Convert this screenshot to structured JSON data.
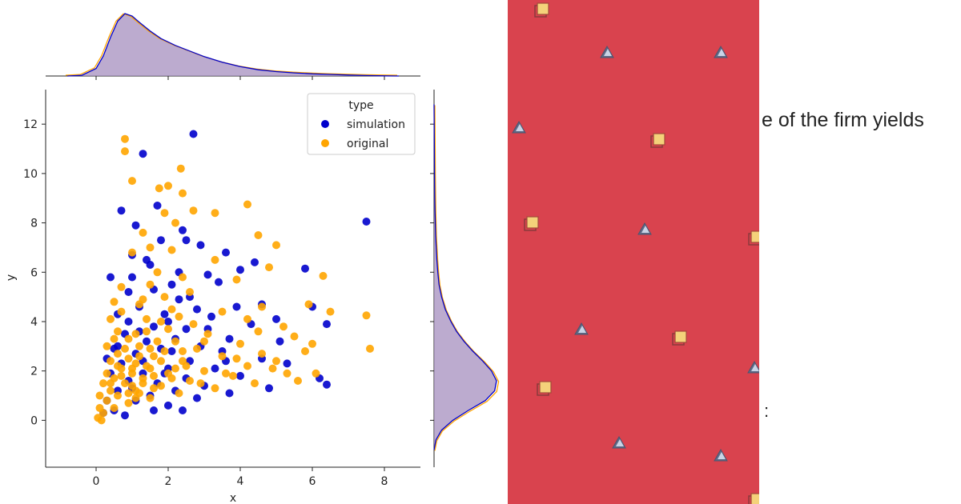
{
  "chart_data": {
    "type": "scatter",
    "title": "",
    "xlabel": "x",
    "ylabel": "y",
    "xlim": [
      -1.4,
      9.0
    ],
    "ylim": [
      -1.9,
      13.4
    ],
    "xticks": [
      0,
      2,
      4,
      6,
      8
    ],
    "yticks": [
      0,
      2,
      4,
      6,
      8,
      10,
      12
    ],
    "grid": false,
    "legend": {
      "title": "type",
      "placement": "top-right",
      "entries": [
        {
          "label": "simulation",
          "color": "#0000cc"
        },
        {
          "label": "original",
          "color": "#ffa500"
        }
      ]
    },
    "series": [
      {
        "name": "simulation",
        "color": "#0000cc",
        "points": [
          [
            2.7,
            11.6
          ],
          [
            1.3,
            10.8
          ],
          [
            7.5,
            8.05
          ],
          [
            0.7,
            8.5
          ],
          [
            1.7,
            8.7
          ],
          [
            1.1,
            7.9
          ],
          [
            2.4,
            7.7
          ],
          [
            2.5,
            7.3
          ],
          [
            2.9,
            7.1
          ],
          [
            1.8,
            7.3
          ],
          [
            1.0,
            6.7
          ],
          [
            3.6,
            6.8
          ],
          [
            4.0,
            6.1
          ],
          [
            5.8,
            6.15
          ],
          [
            3.1,
            5.9
          ],
          [
            1.5,
            6.3
          ],
          [
            0.4,
            5.8
          ],
          [
            0.9,
            5.2
          ],
          [
            2.1,
            5.5
          ],
          [
            3.4,
            5.6
          ],
          [
            2.3,
            4.9
          ],
          [
            4.6,
            4.7
          ],
          [
            6.0,
            4.6
          ],
          [
            1.2,
            4.6
          ],
          [
            2.8,
            4.5
          ],
          [
            1.9,
            4.3
          ],
          [
            3.2,
            4.2
          ],
          [
            0.6,
            4.3
          ],
          [
            4.3,
            3.9
          ],
          [
            2.5,
            3.7
          ],
          [
            1.6,
            3.8
          ],
          [
            3.7,
            3.3
          ],
          [
            0.8,
            3.5
          ],
          [
            2.2,
            3.3
          ],
          [
            5.1,
            3.2
          ],
          [
            1.4,
            3.2
          ],
          [
            2.9,
            3.0
          ],
          [
            6.4,
            3.9
          ],
          [
            0.5,
            2.9
          ],
          [
            3.5,
            2.8
          ],
          [
            1.8,
            2.9
          ],
          [
            4.6,
            2.5
          ],
          [
            1.1,
            2.7
          ],
          [
            2.6,
            2.4
          ],
          [
            5.3,
            2.3
          ],
          [
            0.7,
            2.3
          ],
          [
            2.0,
            2.1
          ],
          [
            3.3,
            2.1
          ],
          [
            6.2,
            1.7
          ],
          [
            1.3,
            1.9
          ],
          [
            4.0,
            1.8
          ],
          [
            2.5,
            1.7
          ],
          [
            0.9,
            1.6
          ],
          [
            1.7,
            1.5
          ],
          [
            3.0,
            1.4
          ],
          [
            6.4,
            1.45
          ],
          [
            4.8,
            1.3
          ],
          [
            2.2,
            1.2
          ],
          [
            0.6,
            1.2
          ],
          [
            1.5,
            1.0
          ],
          [
            3.7,
            1.1
          ],
          [
            2.8,
            0.9
          ],
          [
            1.1,
            0.8
          ],
          [
            0.3,
            0.8
          ],
          [
            2.0,
            0.6
          ],
          [
            1.6,
            0.4
          ],
          [
            0.5,
            0.4
          ],
          [
            2.4,
            0.4
          ],
          [
            0.8,
            0.2
          ],
          [
            0.2,
            0.3
          ],
          [
            1.0,
            1.3
          ],
          [
            1.3,
            2.4
          ],
          [
            0.4,
            1.9
          ],
          [
            2.1,
            2.8
          ],
          [
            1.9,
            1.9
          ],
          [
            3.1,
            3.7
          ],
          [
            2.6,
            5.0
          ],
          [
            1.6,
            5.3
          ],
          [
            4.4,
            6.4
          ],
          [
            5.0,
            4.1
          ],
          [
            3.9,
            4.6
          ],
          [
            1.2,
            3.6
          ],
          [
            0.9,
            4.0
          ],
          [
            0.3,
            2.5
          ],
          [
            2.3,
            6.0
          ],
          [
            2.0,
            4.0
          ],
          [
            1.0,
            5.8
          ],
          [
            0.6,
            3.0
          ],
          [
            1.4,
            6.5
          ],
          [
            3.6,
            2.4
          ]
        ]
      },
      {
        "name": "original",
        "color": "#ffa500",
        "points": [
          [
            0.8,
            11.4
          ],
          [
            0.8,
            10.9
          ],
          [
            2.35,
            10.2
          ],
          [
            1.0,
            9.7
          ],
          [
            1.75,
            9.4
          ],
          [
            2.0,
            9.5
          ],
          [
            2.4,
            9.2
          ],
          [
            4.2,
            8.75
          ],
          [
            1.9,
            8.4
          ],
          [
            2.7,
            8.5
          ],
          [
            3.3,
            8.4
          ],
          [
            2.2,
            8.0
          ],
          [
            1.3,
            7.6
          ],
          [
            4.5,
            7.5
          ],
          [
            5.0,
            7.1
          ],
          [
            1.5,
            7.0
          ],
          [
            2.1,
            6.9
          ],
          [
            1.0,
            6.8
          ],
          [
            3.3,
            6.5
          ],
          [
            4.8,
            6.2
          ],
          [
            1.7,
            6.0
          ],
          [
            2.4,
            5.8
          ],
          [
            3.9,
            5.7
          ],
          [
            6.3,
            5.85
          ],
          [
            0.7,
            5.4
          ],
          [
            1.5,
            5.5
          ],
          [
            2.6,
            5.2
          ],
          [
            4.6,
            4.6
          ],
          [
            5.9,
            4.7
          ],
          [
            6.5,
            4.4
          ],
          [
            0.5,
            4.8
          ],
          [
            1.2,
            4.7
          ],
          [
            2.1,
            4.5
          ],
          [
            3.5,
            4.4
          ],
          [
            4.2,
            4.1
          ],
          [
            7.5,
            4.25
          ],
          [
            0.4,
            4.1
          ],
          [
            1.8,
            4.0
          ],
          [
            2.7,
            3.9
          ],
          [
            5.2,
            3.8
          ],
          [
            0.6,
            3.6
          ],
          [
            1.4,
            3.6
          ],
          [
            3.1,
            3.5
          ],
          [
            5.5,
            3.4
          ],
          [
            0.9,
            3.3
          ],
          [
            2.2,
            3.2
          ],
          [
            4.0,
            3.1
          ],
          [
            7.6,
            2.9
          ],
          [
            0.3,
            3.0
          ],
          [
            1.2,
            3.0
          ],
          [
            2.8,
            2.9
          ],
          [
            4.6,
            2.7
          ],
          [
            0.6,
            2.7
          ],
          [
            1.6,
            2.6
          ],
          [
            3.5,
            2.6
          ],
          [
            5.0,
            2.4
          ],
          [
            0.4,
            2.4
          ],
          [
            1.1,
            2.3
          ],
          [
            2.4,
            2.4
          ],
          [
            4.2,
            2.2
          ],
          [
            0.7,
            2.1
          ],
          [
            1.5,
            2.1
          ],
          [
            3.0,
            2.0
          ],
          [
            5.3,
            1.9
          ],
          [
            0.3,
            1.9
          ],
          [
            1.0,
            1.9
          ],
          [
            2.0,
            1.9
          ],
          [
            3.8,
            1.8
          ],
          [
            0.5,
            1.7
          ],
          [
            1.3,
            1.7
          ],
          [
            2.6,
            1.6
          ],
          [
            4.4,
            1.5
          ],
          [
            0.2,
            1.5
          ],
          [
            0.8,
            1.5
          ],
          [
            1.8,
            1.4
          ],
          [
            3.3,
            1.3
          ],
          [
            0.4,
            1.2
          ],
          [
            1.1,
            1.2
          ],
          [
            2.3,
            1.1
          ],
          [
            0.1,
            1.0
          ],
          [
            0.6,
            1.0
          ],
          [
            1.5,
            0.9
          ],
          [
            0.3,
            0.8
          ],
          [
            0.9,
            0.7
          ],
          [
            0.1,
            0.5
          ],
          [
            0.5,
            0.5
          ],
          [
            0.2,
            0.3
          ],
          [
            0.05,
            0.1
          ],
          [
            0.15,
            0.0
          ],
          [
            1.2,
            2.6
          ],
          [
            1.4,
            2.2
          ],
          [
            0.9,
            2.5
          ],
          [
            1.7,
            3.2
          ],
          [
            1.9,
            2.8
          ],
          [
            2.5,
            2.2
          ],
          [
            1.0,
            1.4
          ],
          [
            0.7,
            1.8
          ],
          [
            1.3,
            1.5
          ],
          [
            2.1,
            1.7
          ],
          [
            1.6,
            1.8
          ],
          [
            0.8,
            2.9
          ],
          [
            1.1,
            3.5
          ],
          [
            1.4,
            4.1
          ],
          [
            0.6,
            2.2
          ],
          [
            1.8,
            2.4
          ],
          [
            2.2,
            2.1
          ],
          [
            0.4,
            1.5
          ],
          [
            1.2,
            1.1
          ],
          [
            2.9,
            1.5
          ],
          [
            3.6,
            1.9
          ],
          [
            4.9,
            2.1
          ],
          [
            5.6,
            1.6
          ],
          [
            6.1,
            1.9
          ],
          [
            1.5,
            2.9
          ],
          [
            2.0,
            3.7
          ],
          [
            0.7,
            4.4
          ],
          [
            1.9,
            5.0
          ],
          [
            2.3,
            4.2
          ],
          [
            3.0,
            3.2
          ],
          [
            1.3,
            4.9
          ],
          [
            0.5,
            3.3
          ],
          [
            1.0,
            2.1
          ],
          [
            1.6,
            1.3
          ],
          [
            2.4,
            2.8
          ],
          [
            1.1,
            0.9
          ],
          [
            0.9,
            1.1
          ],
          [
            3.9,
            2.5
          ],
          [
            4.5,
            3.6
          ],
          [
            5.8,
            2.8
          ],
          [
            6.0,
            3.1
          ]
        ]
      }
    ],
    "marginal_top": {
      "type": "kde",
      "x": [
        -0.8,
        -0.4,
        0,
        0.2,
        0.4,
        0.6,
        0.8,
        1.0,
        1.2,
        1.5,
        1.8,
        2.2,
        2.6,
        3.0,
        3.5,
        4.0,
        4.5,
        5.0,
        5.5,
        6.0,
        6.5,
        7.0,
        7.5,
        8.0,
        8.4
      ],
      "density": [
        0,
        0.01,
        0.12,
        0.32,
        0.62,
        0.88,
        1.0,
        0.96,
        0.86,
        0.72,
        0.6,
        0.49,
        0.4,
        0.31,
        0.22,
        0.15,
        0.1,
        0.07,
        0.05,
        0.035,
        0.025,
        0.015,
        0.008,
        0.003,
        0
      ]
    },
    "marginal_right": {
      "type": "kde",
      "y": [
        -1.2,
        -0.8,
        -0.4,
        0,
        0.4,
        0.8,
        1.2,
        1.6,
        2.0,
        2.4,
        2.8,
        3.2,
        3.6,
        4.0,
        4.5,
        5.0,
        5.5,
        6.0,
        6.5,
        7.0,
        7.5,
        8.0,
        8.5,
        9.0,
        10,
        11,
        12,
        12.8
      ],
      "density": [
        0,
        0.03,
        0.12,
        0.3,
        0.55,
        0.82,
        0.97,
        1.0,
        0.92,
        0.78,
        0.62,
        0.48,
        0.36,
        0.27,
        0.18,
        0.12,
        0.08,
        0.06,
        0.045,
        0.035,
        0.025,
        0.02,
        0.015,
        0.012,
        0.008,
        0.005,
        0.003,
        0
      ]
    }
  },
  "snippet": {
    "line1": "e of the firm yields",
    "line2": ":"
  },
  "panel": {
    "background": "#d9434e"
  }
}
